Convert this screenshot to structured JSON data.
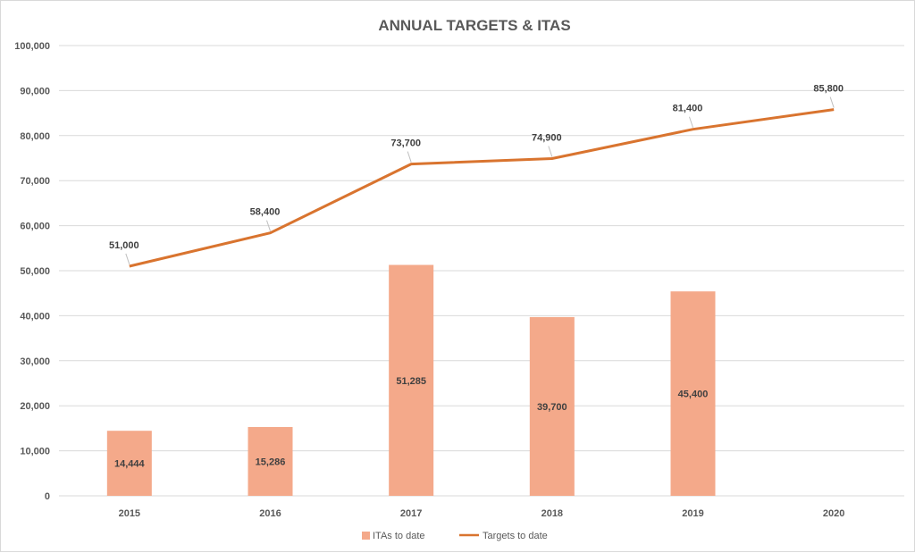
{
  "chart_data": {
    "type": "bar",
    "title": "ANNUAL TARGETS & ITAS",
    "categories": [
      "2015",
      "2016",
      "2017",
      "2018",
      "2019",
      "2020"
    ],
    "ylim": [
      0,
      100000
    ],
    "yticks": [
      0,
      10000,
      20000,
      30000,
      40000,
      50000,
      60000,
      70000,
      80000,
      90000,
      100000
    ],
    "ytick_labels": [
      "0",
      "10,000",
      "20,000",
      "30,000",
      "40,000",
      "50,000",
      "60,000",
      "70,000",
      "80,000",
      "90,000",
      "100,000"
    ],
    "grid": true,
    "legend_position": "bottom",
    "series": [
      {
        "name": "ITAs to date",
        "type": "bar",
        "color": "#f4a98a",
        "values": [
          14444,
          15286,
          51285,
          39700,
          45400,
          null
        ],
        "labels": [
          "14,444",
          "15,286",
          "51,285",
          "39,700",
          "45,400",
          null
        ]
      },
      {
        "name": "Targets to date",
        "type": "line",
        "color": "#d9742f",
        "values": [
          51000,
          58400,
          73700,
          74900,
          81400,
          85800
        ],
        "labels": [
          "51,000",
          "58,400",
          "73,700",
          "74,900",
          "81,400",
          "85,800"
        ]
      }
    ]
  }
}
